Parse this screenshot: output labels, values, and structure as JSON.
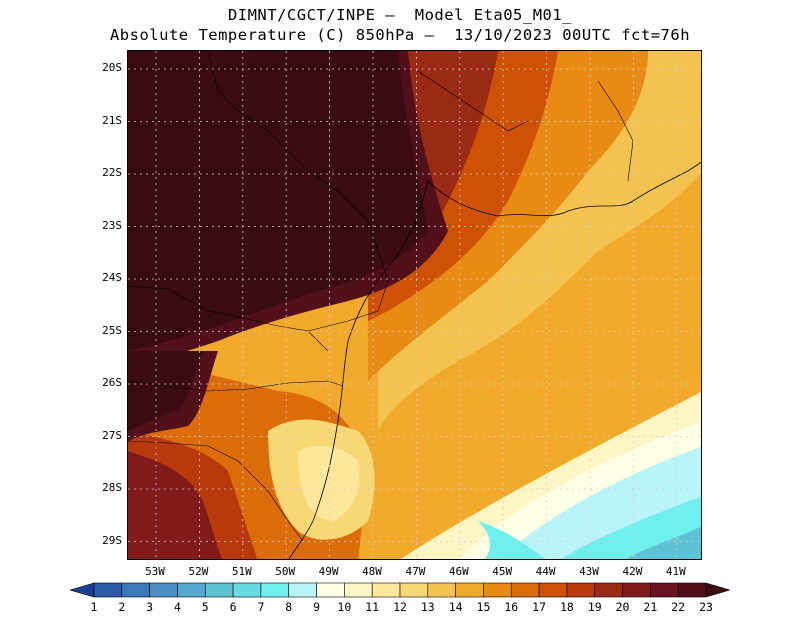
{
  "title": {
    "line1": "DIMNT/CGCT/INPE —  Model Eta05_M01_",
    "line2": "Absolute Temperature (C) 850hPa —  13/10/2023 00UTC fct=76h"
  },
  "map": {
    "lat_labels": [
      "20S",
      "21S",
      "22S",
      "23S",
      "24S",
      "25S",
      "26S",
      "27S",
      "28S",
      "29S"
    ],
    "lon_labels": [
      "53W",
      "52W",
      "51W",
      "50W",
      "49W",
      "48W",
      "47W",
      "46W",
      "45W",
      "44W",
      "43W",
      "42W",
      "41W"
    ],
    "grid": "dotted",
    "borders": [
      "state borders",
      "coastline"
    ]
  },
  "colorbar": {
    "labels": [
      "1",
      "2",
      "3",
      "4",
      "5",
      "6",
      "7",
      "8",
      "9",
      "10",
      "11",
      "12",
      "13",
      "14",
      "15",
      "16",
      "17",
      "18",
      "19",
      "20",
      "21",
      "22",
      "23"
    ],
    "colors": [
      "#1f3e95",
      "#2b5ba8",
      "#3a78b9",
      "#4c8fc4",
      "#56a9cc",
      "#5fc3d6",
      "#66dbe1",
      "#6ef0ef",
      "#b8f4f8",
      "#ffffe6",
      "#fdf5c4",
      "#fce79b",
      "#f8d775",
      "#f4c24f",
      "#f0a92a",
      "#e78b14",
      "#dc6c0a",
      "#cf5103",
      "#b8390b",
      "#9a2a14",
      "#801b1a",
      "#6a1220",
      "#52101b",
      "#3a0c12"
    ]
  }
}
